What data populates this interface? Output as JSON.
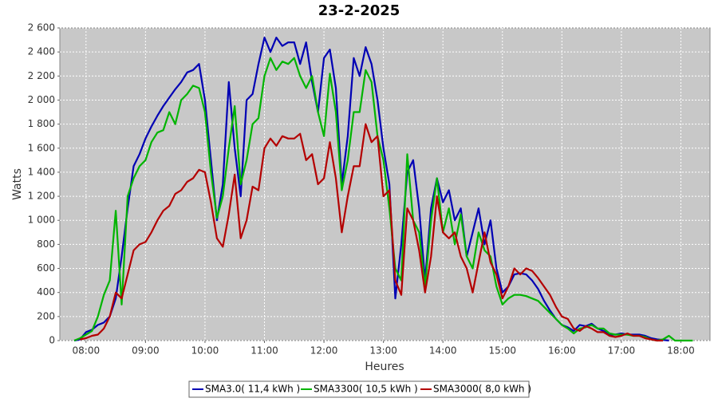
{
  "chart_data": {
    "type": "line",
    "title": "23-2-2025",
    "x_label": "Heures",
    "y_label": "Watts",
    "x": [
      7.8,
      7.9,
      8.0,
      8.1,
      8.2,
      8.3,
      8.4,
      8.5,
      8.6,
      8.7,
      8.8,
      8.9,
      9.0,
      9.1,
      9.2,
      9.3,
      9.4,
      9.5,
      9.6,
      9.7,
      9.8,
      9.9,
      10.0,
      10.1,
      10.2,
      10.3,
      10.4,
      10.5,
      10.6,
      10.7,
      10.8,
      10.9,
      11.0,
      11.1,
      11.2,
      11.3,
      11.4,
      11.5,
      11.6,
      11.7,
      11.8,
      11.9,
      12.0,
      12.1,
      12.2,
      12.3,
      12.4,
      12.5,
      12.6,
      12.7,
      12.8,
      12.9,
      13.0,
      13.1,
      13.2,
      13.3,
      13.4,
      13.5,
      13.6,
      13.7,
      13.8,
      13.9,
      14.0,
      14.1,
      14.2,
      14.3,
      14.4,
      14.5,
      14.6,
      14.7,
      14.8,
      14.9,
      15.0,
      15.1,
      15.2,
      15.3,
      15.4,
      15.5,
      15.6,
      15.7,
      15.8,
      15.9,
      16.0,
      16.1,
      16.2,
      16.3,
      16.4,
      16.5,
      16.6,
      16.7,
      16.8,
      16.9,
      17.0,
      17.1,
      17.2,
      17.3,
      17.4,
      17.5,
      17.6,
      17.7,
      17.8,
      17.9,
      18.0,
      18.1,
      18.2
    ],
    "series": [
      {
        "name": "SMA3.0( 11,4 kWh )",
        "color": "#0000b4",
        "values": [
          0,
          10,
          70,
          90,
          130,
          150,
          200,
          350,
          700,
          1100,
          1450,
          1550,
          1680,
          1780,
          1870,
          1950,
          2020,
          2090,
          2150,
          2230,
          2250,
          2300,
          2000,
          1500,
          1000,
          1300,
          2150,
          1600,
          1200,
          2000,
          2050,
          2300,
          2520,
          2400,
          2520,
          2450,
          2480,
          2480,
          2300,
          2480,
          2150,
          1900,
          2350,
          2420,
          2100,
          1300,
          1700,
          2350,
          2200,
          2440,
          2300,
          2000,
          1600,
          1300,
          350,
          800,
          1400,
          1500,
          1100,
          500,
          1100,
          1350,
          1150,
          1250,
          1000,
          1100,
          700,
          900,
          1100,
          800,
          1000,
          600,
          400,
          450,
          550,
          560,
          550,
          500,
          430,
          330,
          250,
          180,
          130,
          110,
          80,
          130,
          120,
          140,
          100,
          80,
          50,
          50,
          60,
          50,
          50,
          50,
          40,
          20,
          10,
          5,
          0,
          null,
          null,
          null,
          null
        ]
      },
      {
        "name": "SMA3300( 10,5 kWh )",
        "color": "#00b400",
        "values": [
          0,
          20,
          50,
          80,
          200,
          380,
          500,
          1080,
          300,
          1200,
          1350,
          1450,
          1500,
          1650,
          1730,
          1750,
          1900,
          1800,
          2000,
          2050,
          2120,
          2100,
          1900,
          1400,
          1020,
          1200,
          1600,
          1950,
          1300,
          1500,
          1800,
          1850,
          2200,
          2350,
          2250,
          2320,
          2300,
          2350,
          2200,
          2100,
          2200,
          1900,
          1700,
          2220,
          1900,
          1250,
          1500,
          1900,
          1900,
          2250,
          2150,
          1700,
          1500,
          1100,
          600,
          500,
          1550,
          1000,
          900,
          450,
          1000,
          1350,
          900,
          1100,
          800,
          1050,
          700,
          600,
          900,
          750,
          700,
          450,
          300,
          350,
          380,
          380,
          370,
          350,
          330,
          280,
          230,
          180,
          130,
          100,
          60,
          100,
          110,
          130,
          100,
          100,
          60,
          50,
          50,
          50,
          40,
          40,
          30,
          10,
          0,
          10,
          40,
          0,
          0,
          0,
          0
        ]
      },
      {
        "name": "SMA3000( 8,0 kWh )",
        "color": "#b40000",
        "values": [
          null,
          10,
          20,
          40,
          50,
          100,
          200,
          400,
          350,
          550,
          750,
          800,
          820,
          900,
          1000,
          1080,
          1120,
          1220,
          1250,
          1320,
          1350,
          1420,
          1400,
          1150,
          850,
          780,
          1050,
          1380,
          850,
          1000,
          1280,
          1250,
          1600,
          1680,
          1620,
          1700,
          1680,
          1680,
          1720,
          1500,
          1550,
          1300,
          1350,
          1650,
          1350,
          900,
          1200,
          1450,
          1450,
          1800,
          1650,
          1700,
          1200,
          1250,
          500,
          380,
          1100,
          1000,
          750,
          400,
          700,
          1200,
          900,
          850,
          900,
          700,
          600,
          400,
          650,
          900,
          650,
          550,
          350,
          450,
          600,
          550,
          600,
          580,
          520,
          450,
          380,
          280,
          200,
          180,
          100,
          80,
          120,
          100,
          70,
          70,
          40,
          30,
          40,
          60,
          40,
          40,
          20,
          10,
          0,
          0,
          null,
          null,
          null,
          null,
          null
        ]
      }
    ],
    "xlim": [
      7.56,
      18.49
    ],
    "xticks": [
      {
        "value": 8,
        "label": "08:00"
      },
      {
        "value": 9,
        "label": "09:00"
      },
      {
        "value": 10,
        "label": "10:00"
      },
      {
        "value": 11,
        "label": "11:00"
      },
      {
        "value": 12,
        "label": "12:00"
      },
      {
        "value": 13,
        "label": "13:00"
      },
      {
        "value": 14,
        "label": "14:00"
      },
      {
        "value": 15,
        "label": "15:00"
      },
      {
        "value": 16,
        "label": "16:00"
      },
      {
        "value": 17,
        "label": "17:00"
      },
      {
        "value": 18,
        "label": "18:00"
      }
    ],
    "ylim": [
      0,
      2600
    ],
    "yticks": [
      0,
      200,
      400,
      600,
      800,
      {
        "value": 1000,
        "label": "1 000"
      },
      {
        "value": 1200,
        "label": "1 200"
      },
      {
        "value": 1400,
        "label": "1 400"
      },
      {
        "value": 1600,
        "label": "1 600"
      },
      {
        "value": 1800,
        "label": "1 800"
      },
      {
        "value": 2000,
        "label": "2 000"
      },
      {
        "value": 2200,
        "label": "2 200"
      },
      {
        "value": 2400,
        "label": "2 400"
      },
      {
        "value": 2600,
        "label": "2 600"
      }
    ],
    "grid": true,
    "legend": "bottom"
  }
}
